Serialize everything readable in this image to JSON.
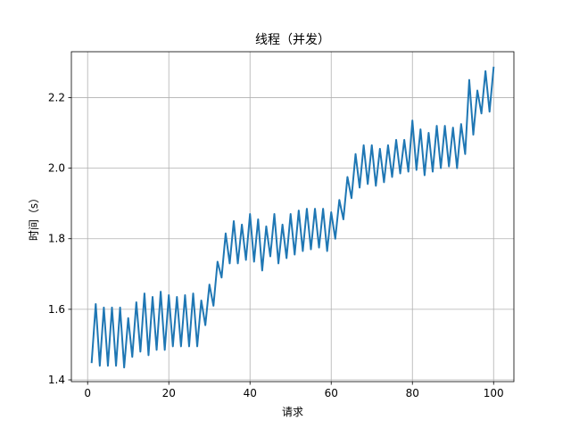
{
  "chart_data": {
    "type": "line",
    "title": "线程（并发）",
    "xlabel": "请求",
    "ylabel": "时间（s）",
    "xlim": [
      -4,
      105
    ],
    "ylim": [
      1.395,
      2.33
    ],
    "xticks": [
      0,
      20,
      40,
      60,
      80,
      100
    ],
    "yticks": [
      1.4,
      1.6,
      1.8,
      2.0,
      2.2
    ],
    "xtick_labels": [
      "0",
      "20",
      "40",
      "60",
      "80",
      "100"
    ],
    "ytick_labels": [
      "1.4",
      "1.6",
      "1.8",
      "2.0",
      "2.2"
    ],
    "grid": true,
    "series": [
      {
        "color": "#1f77b4",
        "x": [
          1,
          2,
          3,
          4,
          5,
          6,
          7,
          8,
          9,
          10,
          11,
          12,
          13,
          14,
          15,
          16,
          17,
          18,
          19,
          20,
          21,
          22,
          23,
          24,
          25,
          26,
          27,
          28,
          29,
          30,
          31,
          32,
          33,
          34,
          35,
          36,
          37,
          38,
          39,
          40,
          41,
          42,
          43,
          44,
          45,
          46,
          47,
          48,
          49,
          50,
          51,
          52,
          53,
          54,
          55,
          56,
          57,
          58,
          59,
          60,
          61,
          62,
          63,
          64,
          65,
          66,
          67,
          68,
          69,
          70,
          71,
          72,
          73,
          74,
          75,
          76,
          77,
          78,
          79,
          80,
          81,
          82,
          83,
          84,
          85,
          86,
          87,
          88,
          89,
          90,
          91,
          92,
          93,
          94,
          95,
          96,
          97,
          98,
          99,
          100
        ],
        "y": [
          1.45,
          1.615,
          1.44,
          1.605,
          1.44,
          1.605,
          1.44,
          1.605,
          1.435,
          1.575,
          1.465,
          1.62,
          1.48,
          1.645,
          1.47,
          1.635,
          1.485,
          1.65,
          1.485,
          1.64,
          1.495,
          1.635,
          1.495,
          1.64,
          1.495,
          1.645,
          1.495,
          1.625,
          1.555,
          1.67,
          1.61,
          1.735,
          1.69,
          1.815,
          1.73,
          1.85,
          1.73,
          1.84,
          1.74,
          1.87,
          1.735,
          1.855,
          1.71,
          1.835,
          1.75,
          1.87,
          1.73,
          1.84,
          1.745,
          1.87,
          1.755,
          1.88,
          1.765,
          1.885,
          1.77,
          1.885,
          1.775,
          1.885,
          1.765,
          1.875,
          1.8,
          1.91,
          1.855,
          1.975,
          1.915,
          2.04,
          1.945,
          2.065,
          1.955,
          2.065,
          1.95,
          2.055,
          1.96,
          2.065,
          1.975,
          2.08,
          1.985,
          2.08,
          1.99,
          2.135,
          1.995,
          2.11,
          1.98,
          2.1,
          1.99,
          2.12,
          2.0,
          2.12,
          2.005,
          2.115,
          2.0,
          2.125,
          2.04,
          2.25,
          2.095,
          2.22,
          2.155,
          2.275,
          2.16,
          2.285
        ]
      }
    ]
  }
}
